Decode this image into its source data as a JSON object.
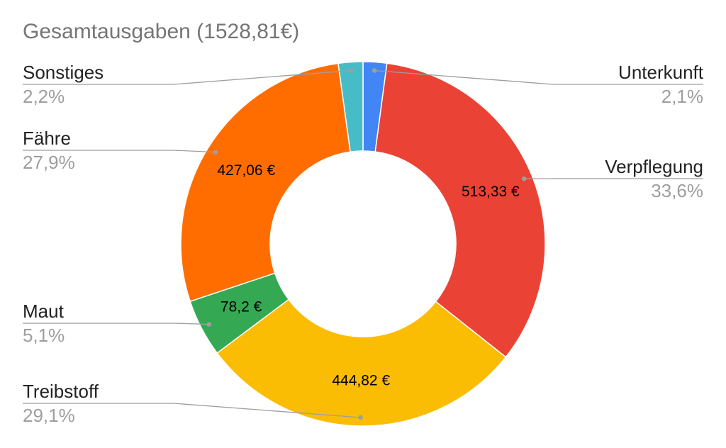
{
  "chart_data": {
    "type": "pie",
    "donut": true,
    "title": "Gesamtausgaben (1528,81€)",
    "legend": "none",
    "slices": [
      {
        "name": "Unterkunft",
        "value": 32.1,
        "percent_label": "2,1%",
        "value_label": "",
        "color": "#4285f4",
        "side": "right"
      },
      {
        "name": "Verpflegung",
        "value": 513.33,
        "percent_label": "33,6%",
        "value_label": "513,33 €",
        "color": "#ea4335",
        "side": "right"
      },
      {
        "name": "Treibstoff",
        "value": 444.82,
        "percent_label": "29,1%",
        "value_label": "444,82 €",
        "color": "#fbbc04",
        "side": "left"
      },
      {
        "name": "Maut",
        "value": 78.2,
        "percent_label": "5,1%",
        "value_label": "78,2 €",
        "color": "#34a853",
        "side": "left"
      },
      {
        "name": "Fähre",
        "value": 427.06,
        "percent_label": "27,9%",
        "value_label": "427,06 €",
        "color": "#ff6d01",
        "side": "left"
      },
      {
        "name": "Sonstiges",
        "value": 33.3,
        "percent_label": "2,2%",
        "value_label": "",
        "color": "#46bdc6",
        "side": "left"
      }
    ]
  }
}
